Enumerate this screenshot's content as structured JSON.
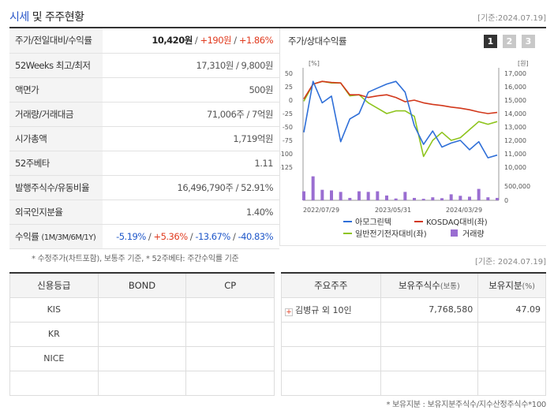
{
  "header": {
    "title_prefix": "시세",
    "title_mid": " 및 ",
    "title_suffix": "주주현황",
    "ref_date": "[기준:2024.07.19]"
  },
  "info": {
    "price_label": "주가/전일대비/수익률",
    "price_value": "10,420원",
    "price_change": "+190원",
    "price_return": "+1.86%",
    "weeks_label": "52Weeks 최고/최저",
    "weeks_value": "17,310원 / 9,800원",
    "par_label": "액면가",
    "par_value": "500원",
    "volume_label": "거래량/거래대금",
    "volume_value": "71,006주 / 7억원",
    "mcap_label": "시가총액",
    "mcap_value": "1,719억원",
    "beta_label": "52주베타",
    "beta_value": "1.11",
    "shares_label": "발행주식수/유동비율",
    "shares_value": "16,496,790주 / 52.91%",
    "foreign_label": "외국인지분율",
    "foreign_value": "1.40%",
    "return_label": "수익률",
    "return_periods": "(1M/3M/6M/1Y)",
    "ret_1m": "-5.19%",
    "ret_3m": "+5.36%",
    "ret_6m": "-13.67%",
    "ret_1y": "-40.83%"
  },
  "chart_panel": {
    "title": "주가/상대수익률",
    "pages": [
      "1",
      "2",
      "3"
    ]
  },
  "chart_data": {
    "type": "line",
    "x_ticks": [
      "2022/07/29",
      "2023/05/31",
      "2024/03/29"
    ],
    "left_unit": "[%]",
    "right_unit": "[원]",
    "left_axis": {
      "ticks": [
        50,
        25,
        0,
        -25,
        -50,
        -75,
        -100,
        -125
      ],
      "ylim": [
        -125,
        50
      ]
    },
    "right_axis": {
      "ticks": [
        "17,000",
        "16,000",
        "15,000",
        "14,000",
        "13,000",
        "12,000",
        "11,000",
        "10,000"
      ],
      "ylim": [
        10000,
        17000
      ]
    },
    "volume_axis": {
      "ticks": [
        "500,000",
        "0"
      ],
      "ylim": [
        0,
        500000
      ]
    },
    "legend": [
      "아모그린텍",
      "KOSDAQ대비(좌)",
      "일반전기전자대비(좌)",
      "거래량"
    ],
    "series": [
      {
        "name": "아모그린텍",
        "axis": "right",
        "color": "#2f6fd8",
        "values": [
          12600,
          16400,
          14800,
          15300,
          11900,
          13600,
          14000,
          15600,
          15900,
          16200,
          16400,
          15600,
          13100,
          11700,
          12700,
          11500,
          11800,
          12000,
          11300,
          11900,
          10700,
          10900
        ]
      },
      {
        "name": "KOSDAQ대비(좌)",
        "axis": "left",
        "color": "#d2381b",
        "values": [
          2,
          30,
          35,
          33,
          32,
          10,
          10,
          5,
          8,
          10,
          5,
          -3,
          0,
          -5,
          -8,
          -10,
          -13,
          -15,
          -18,
          -22,
          -25,
          -23
        ]
      },
      {
        "name": "일반전기전자대비(좌)",
        "axis": "left",
        "color": "#8ec41d",
        "values": [
          -2,
          30,
          35,
          32,
          32,
          8,
          10,
          -5,
          -15,
          -25,
          -20,
          -20,
          -30,
          -105,
          -75,
          -60,
          -75,
          -70,
          -55,
          -40,
          -45,
          -40
        ]
      },
      {
        "name": "거래량",
        "axis": "volume",
        "color": "#9a6ed1",
        "values": [
          300000,
          800000,
          350000,
          330000,
          280000,
          80000,
          300000,
          280000,
          300000,
          160000,
          60000,
          280000,
          80000,
          50000,
          100000,
          70000,
          200000,
          150000,
          120000,
          380000,
          100000,
          80000
        ]
      }
    ],
    "grid": false
  },
  "notes": {
    "note1": "* 수정주가(차트포함), 보통주 기준, * 52주베타: 주간수익률 기준",
    "note2": "[기준: 2024.07.19]",
    "note3": "* 보유지분 : 보유지분주식수/지수산정주식수*100"
  },
  "credit": {
    "headers": [
      "신용등급",
      "BOND",
      "CP"
    ],
    "rows": [
      [
        "KIS",
        "",
        ""
      ],
      [
        "KR",
        "",
        ""
      ],
      [
        "NICE",
        "",
        ""
      ],
      [
        "",
        "",
        ""
      ]
    ]
  },
  "holders": {
    "h_name": "주요주주",
    "h_shares": "보유주식수",
    "h_shares_unit": "(보통)",
    "h_pct": "보유지분",
    "h_pct_unit": "(%)",
    "rows": [
      {
        "name": "김병규 외 10인",
        "shares": "7,768,580",
        "pct": "47.09"
      },
      {
        "name": "",
        "shares": "",
        "pct": ""
      },
      {
        "name": "",
        "shares": "",
        "pct": ""
      },
      {
        "name": "",
        "shares": "",
        "pct": ""
      }
    ]
  }
}
